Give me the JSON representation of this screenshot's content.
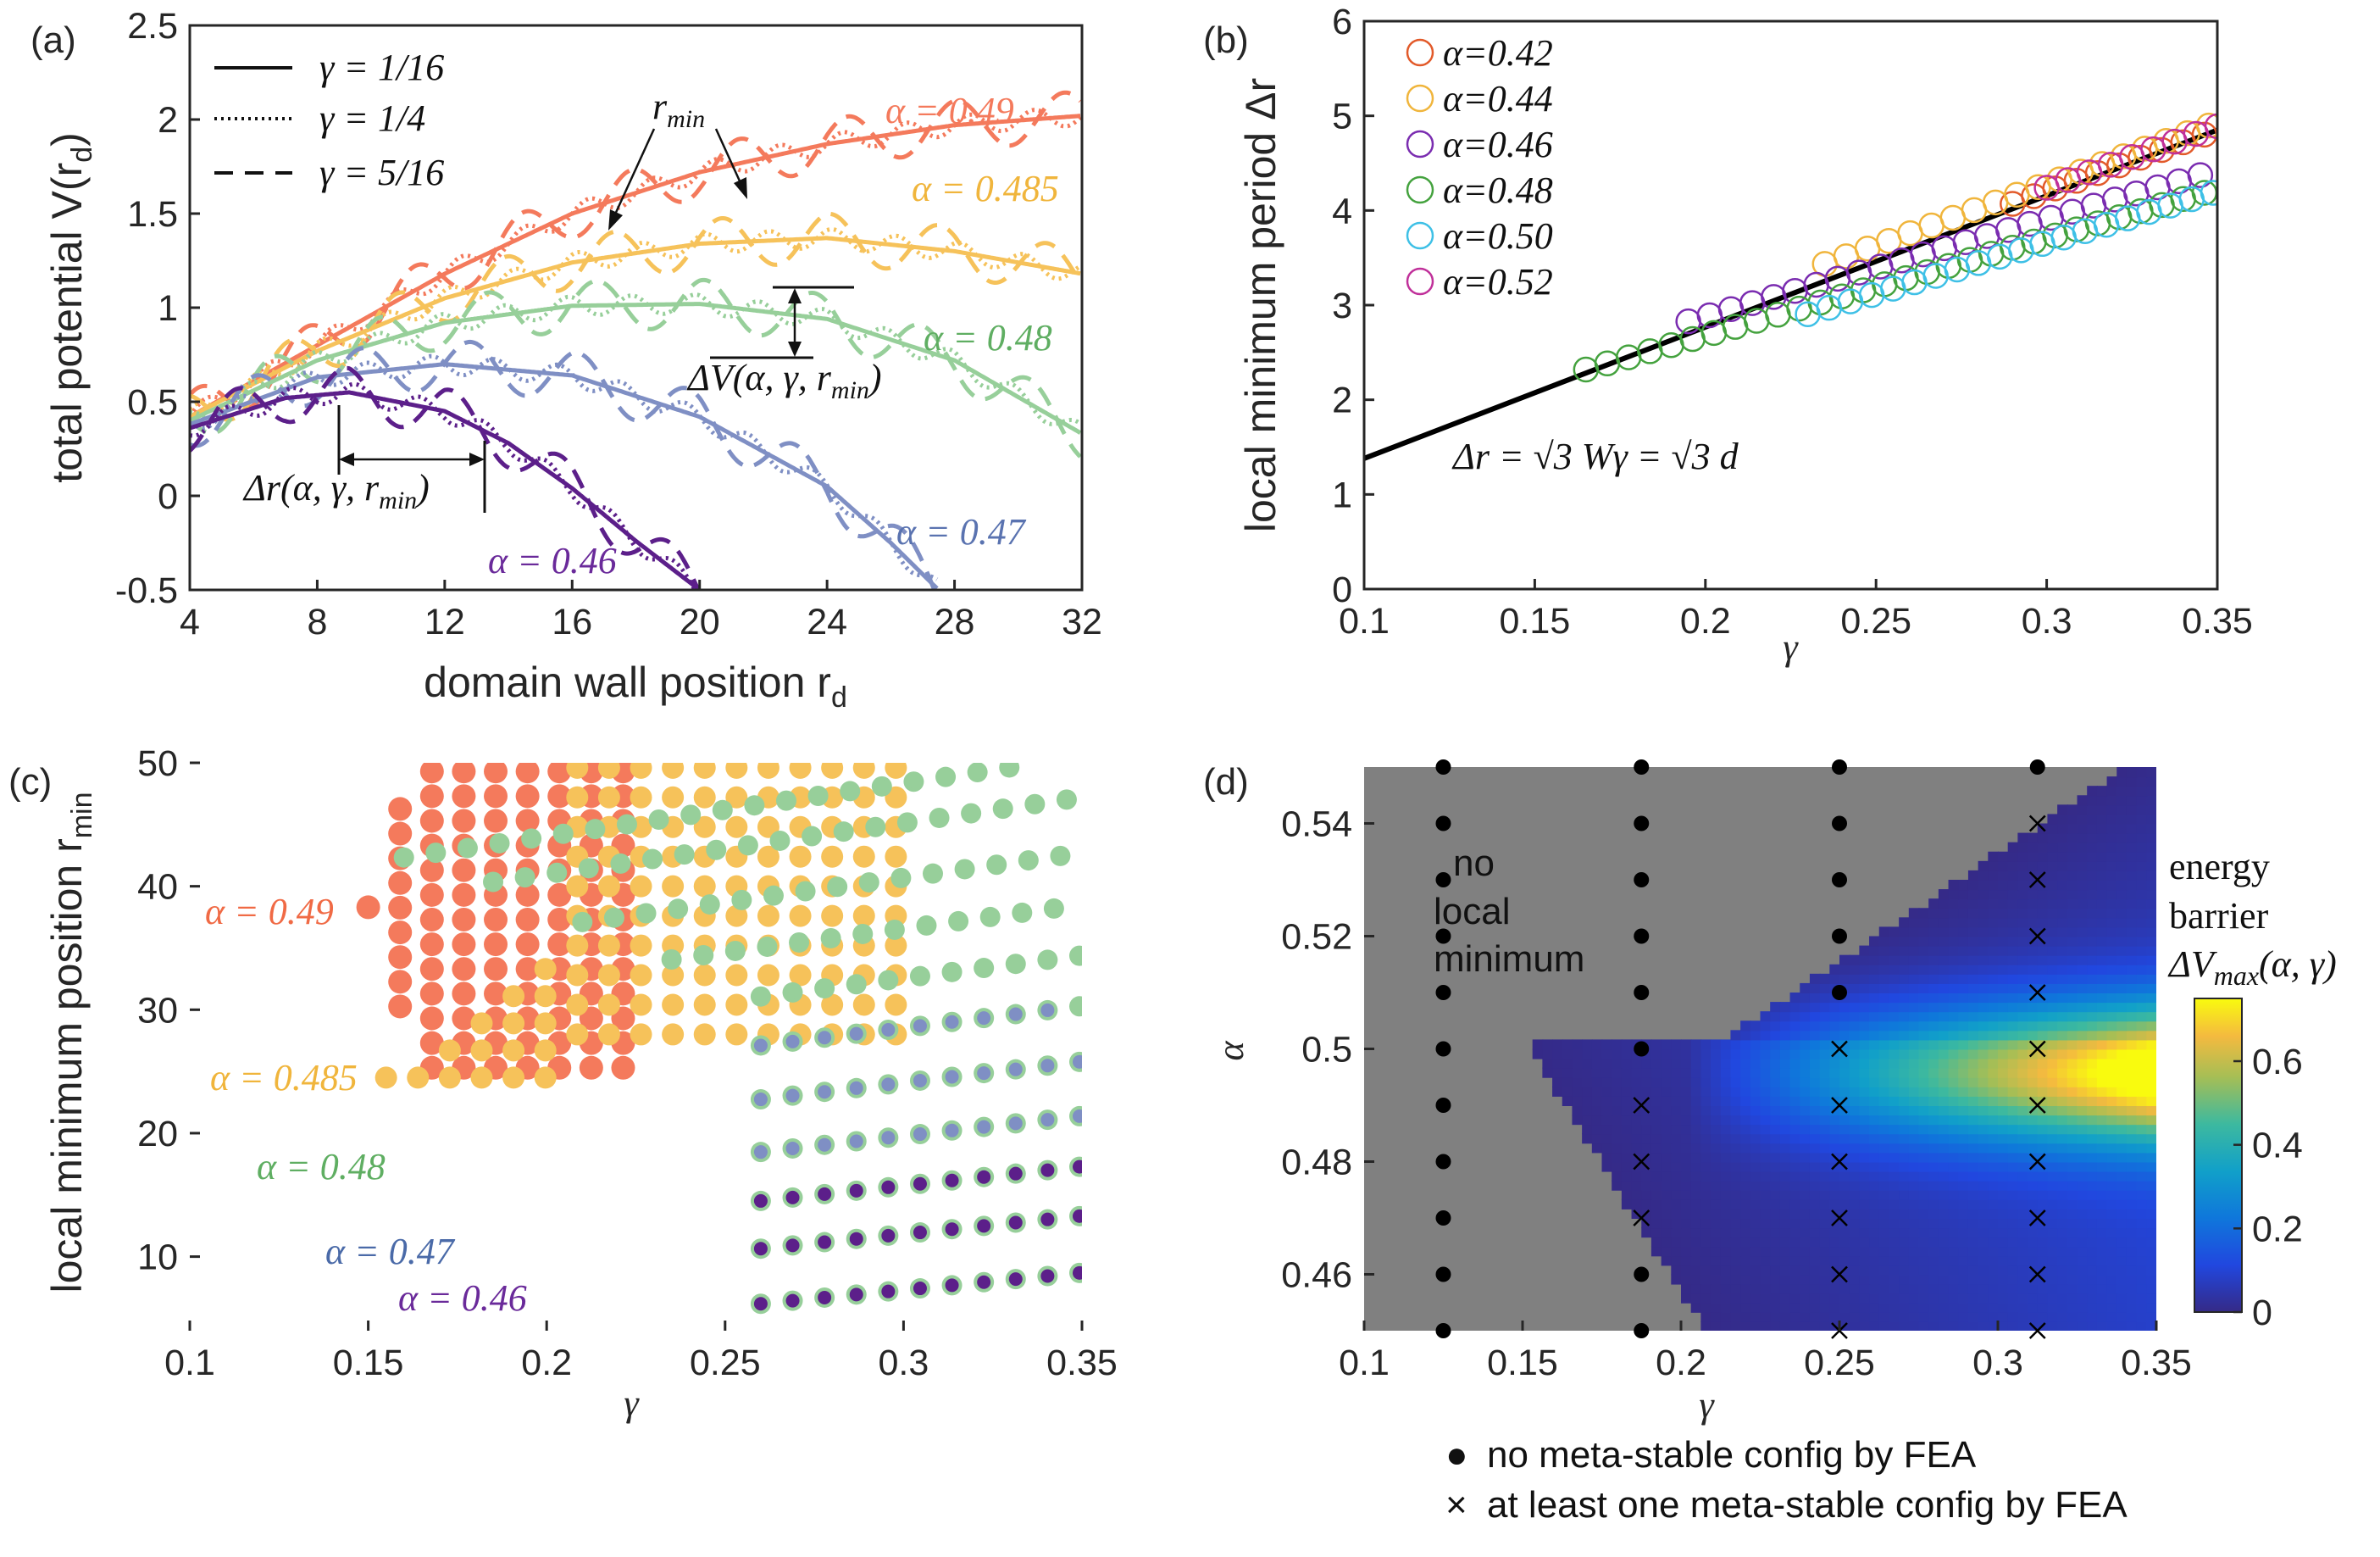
{
  "colors": {
    "a049": "#f47a5c",
    "a0485": "#f6c25a",
    "a048": "#97cf9a",
    "a047": "#7f8fc4",
    "a046": "#5c1f8a",
    "gray": "#808080",
    "b042": "#e25a2a",
    "b044": "#f0b53c",
    "b046": "#7a2cb0",
    "b048": "#44a23e",
    "b050": "#3ec0e6",
    "b052": "#c0309a"
  },
  "chart_data": [
    {
      "panel": "(a)",
      "type": "line",
      "xlabel": "domain  wall  position  r",
      "xlabel_sub": "d",
      "ylabel": "total  potential  V(r",
      "ylabel_sub": "d",
      "ylabel_close": ")",
      "xlim": [
        4,
        32
      ],
      "ylim": [
        -0.5,
        2.5
      ],
      "xticks": [
        "4",
        "8",
        "12",
        "16",
        "20",
        "24",
        "28",
        "32"
      ],
      "yticks": [
        "-0.5",
        "0",
        "0.5",
        "1",
        "1.5",
        "2",
        "2.5"
      ],
      "legend": [
        {
          "label": "γ = 1/16",
          "style": "solid"
        },
        {
          "label": "γ = 1/4",
          "style": "dotted"
        },
        {
          "label": "γ = 5/16",
          "style": "dashed"
        }
      ],
      "curves": [
        {
          "alpha_label": "α = 0.49",
          "color": "a049",
          "points": [
            [
              4,
              0.42
            ],
            [
              8,
              0.8
            ],
            [
              12,
              1.18
            ],
            [
              16,
              1.5
            ],
            [
              20,
              1.72
            ],
            [
              24,
              1.87
            ],
            [
              28,
              1.97
            ],
            [
              32,
              2.02
            ]
          ]
        },
        {
          "alpha_label": "α = 0.485",
          "color": "a0485",
          "points": [
            [
              4,
              0.42
            ],
            [
              8,
              0.77
            ],
            [
              12,
              1.05
            ],
            [
              16,
              1.24
            ],
            [
              20,
              1.34
            ],
            [
              24,
              1.37
            ],
            [
              28,
              1.3
            ],
            [
              32,
              1.18
            ]
          ]
        },
        {
          "alpha_label": "α = 0.48",
          "color": "a048",
          "points": [
            [
              4,
              0.4
            ],
            [
              8,
              0.72
            ],
            [
              12,
              0.92
            ],
            [
              16,
              1.01
            ],
            [
              20,
              1.02
            ],
            [
              24,
              0.94
            ],
            [
              28,
              0.72
            ],
            [
              32,
              0.33
            ]
          ]
        },
        {
          "alpha_label": "α = 0.47",
          "color": "a047",
          "points": [
            [
              4,
              0.38
            ],
            [
              8,
              0.63
            ],
            [
              12,
              0.7
            ],
            [
              16,
              0.64
            ],
            [
              20,
              0.42
            ],
            [
              24,
              0.05
            ],
            [
              26,
              -0.25
            ],
            [
              27.5,
              -0.5
            ]
          ]
        },
        {
          "alpha_label": "α = 0.46",
          "color": "a046",
          "points": [
            [
              4,
              0.36
            ],
            [
              7,
              0.52
            ],
            [
              9,
              0.55
            ],
            [
              12,
              0.45
            ],
            [
              14,
              0.28
            ],
            [
              16,
              0.04
            ],
            [
              18,
              -0.24
            ],
            [
              20,
              -0.5
            ]
          ]
        }
      ],
      "annotations": {
        "rmin": "r",
        "rmin_sub": "min",
        "dV": "ΔV(α, γ, r",
        "dV_sub": "min",
        "dV_close": ")",
        "dr": "Δr(α, γ, r",
        "dr_sub": "min",
        "dr_close": ")"
      }
    },
    {
      "panel": "(b)",
      "type": "scatter",
      "xlabel": "γ",
      "ylabel": "local  minimum  period  Δr",
      "xlim": [
        0.1,
        0.35
      ],
      "ylim": [
        0,
        6
      ],
      "xticks": [
        "0.1",
        "0.15",
        "0.2",
        "0.25",
        "0.3",
        "0.35"
      ],
      "yticks": [
        "0",
        "1",
        "2",
        "3",
        "4",
        "5",
        "6"
      ],
      "fit_label": "Δr = √3 Wγ = √3 d",
      "fit_line": [
        [
          0.1,
          1.38
        ],
        [
          0.35,
          4.85
        ]
      ],
      "series": [
        {
          "name": "α=0.42",
          "color": "b042",
          "gamma_range": [
            0.29,
            0.35
          ],
          "slope": 13.0,
          "intercept": 0.3
        },
        {
          "name": "α=0.44",
          "color": "b044",
          "gamma_range": [
            0.235,
            0.35
          ],
          "slope": 13.0,
          "intercept": 0.38
        },
        {
          "name": "α=0.46",
          "color": "b046",
          "gamma_range": [
            0.195,
            0.35
          ],
          "slope": 10.3,
          "intercept": 0.82
        },
        {
          "name": "α=0.48",
          "color": "b048",
          "gamma_range": [
            0.165,
            0.35
          ],
          "slope": 10.3,
          "intercept": 0.62
        },
        {
          "name": "α=0.50",
          "color": "b050",
          "gamma_range": [
            0.23,
            0.35
          ],
          "slope": 10.8,
          "intercept": 0.42
        },
        {
          "name": "α=0.52",
          "color": "b052",
          "gamma_range": [
            0.3,
            0.35
          ],
          "slope": 13.0,
          "intercept": 0.34
        }
      ]
    },
    {
      "panel": "(c)",
      "type": "scatter",
      "xlabel": "γ",
      "ylabel": "local  minimum  position  r",
      "ylabel_sub": "min",
      "xlim": [
        0.1,
        0.35
      ],
      "ylim": [
        4,
        50
      ],
      "xticks": [
        "0.1",
        "0.15",
        "0.2",
        "0.25",
        "0.3",
        "0.35"
      ],
      "yticks": [
        "10",
        "20",
        "30",
        "40",
        "50"
      ],
      "series_labels": [
        {
          "label": "α = 0.49",
          "color": "a049"
        },
        {
          "label": "α = 0.485",
          "color": "a0485"
        },
        {
          "label": "α = 0.48",
          "color": "a048"
        },
        {
          "label": "α = 0.47",
          "color": "a047"
        },
        {
          "label": "α = 0.46",
          "color": "a046"
        }
      ]
    },
    {
      "panel": "(d)",
      "type": "heatmap",
      "xlabel": "γ",
      "ylabel": "α",
      "xlim": [
        0.1,
        0.35
      ],
      "ylim": [
        0.45,
        0.55
      ],
      "xticks": [
        "0.1",
        "0.15",
        "0.2",
        "0.25",
        "0.3",
        "0.35"
      ],
      "yticks": [
        "0.46",
        "0.48",
        "0.5",
        "0.52",
        "0.54"
      ],
      "colorbar_ticks": [
        "0",
        "0.2",
        "0.4",
        "0.6"
      ],
      "colorbar_range": [
        0,
        0.75
      ],
      "colorbar_title": [
        "energy",
        "barrier"
      ],
      "colorbar_formula": "ΔV",
      "colorbar_formula_sub": "max",
      "colorbar_formula_close": "(α, γ)",
      "no_min_label": [
        "no",
        "local",
        "minimum"
      ],
      "fea_gammas": [
        0.125,
        0.1875,
        0.25,
        0.3125
      ],
      "fea_alphas": [
        0.45,
        0.46,
        0.47,
        0.48,
        0.49,
        0.5,
        0.51,
        0.52,
        0.53,
        0.54,
        0.55
      ],
      "fea_marks": [
        [
          "dot",
          "dot",
          "dot",
          "dot",
          "dot",
          "dot",
          "dot",
          "dot",
          "dot",
          "dot",
          "dot"
        ],
        [
          "dot",
          "dot",
          "cross",
          "cross",
          "cross",
          "dot",
          "dot",
          "dot",
          "dot",
          "dot",
          "dot"
        ],
        [
          "cross",
          "cross",
          "cross",
          "cross",
          "cross",
          "cross",
          "dot",
          "dot",
          "dot",
          "dot",
          "dot"
        ],
        [
          "cross",
          "cross",
          "cross",
          "cross",
          "cross",
          "cross",
          "cross",
          "cross",
          "cross",
          "cross",
          "dot"
        ]
      ],
      "legend": [
        {
          "marker": "●",
          "label": "no meta-stable config by FEA"
        },
        {
          "marker": "×",
          "label": "at least one meta-stable config by FEA"
        }
      ]
    }
  ]
}
